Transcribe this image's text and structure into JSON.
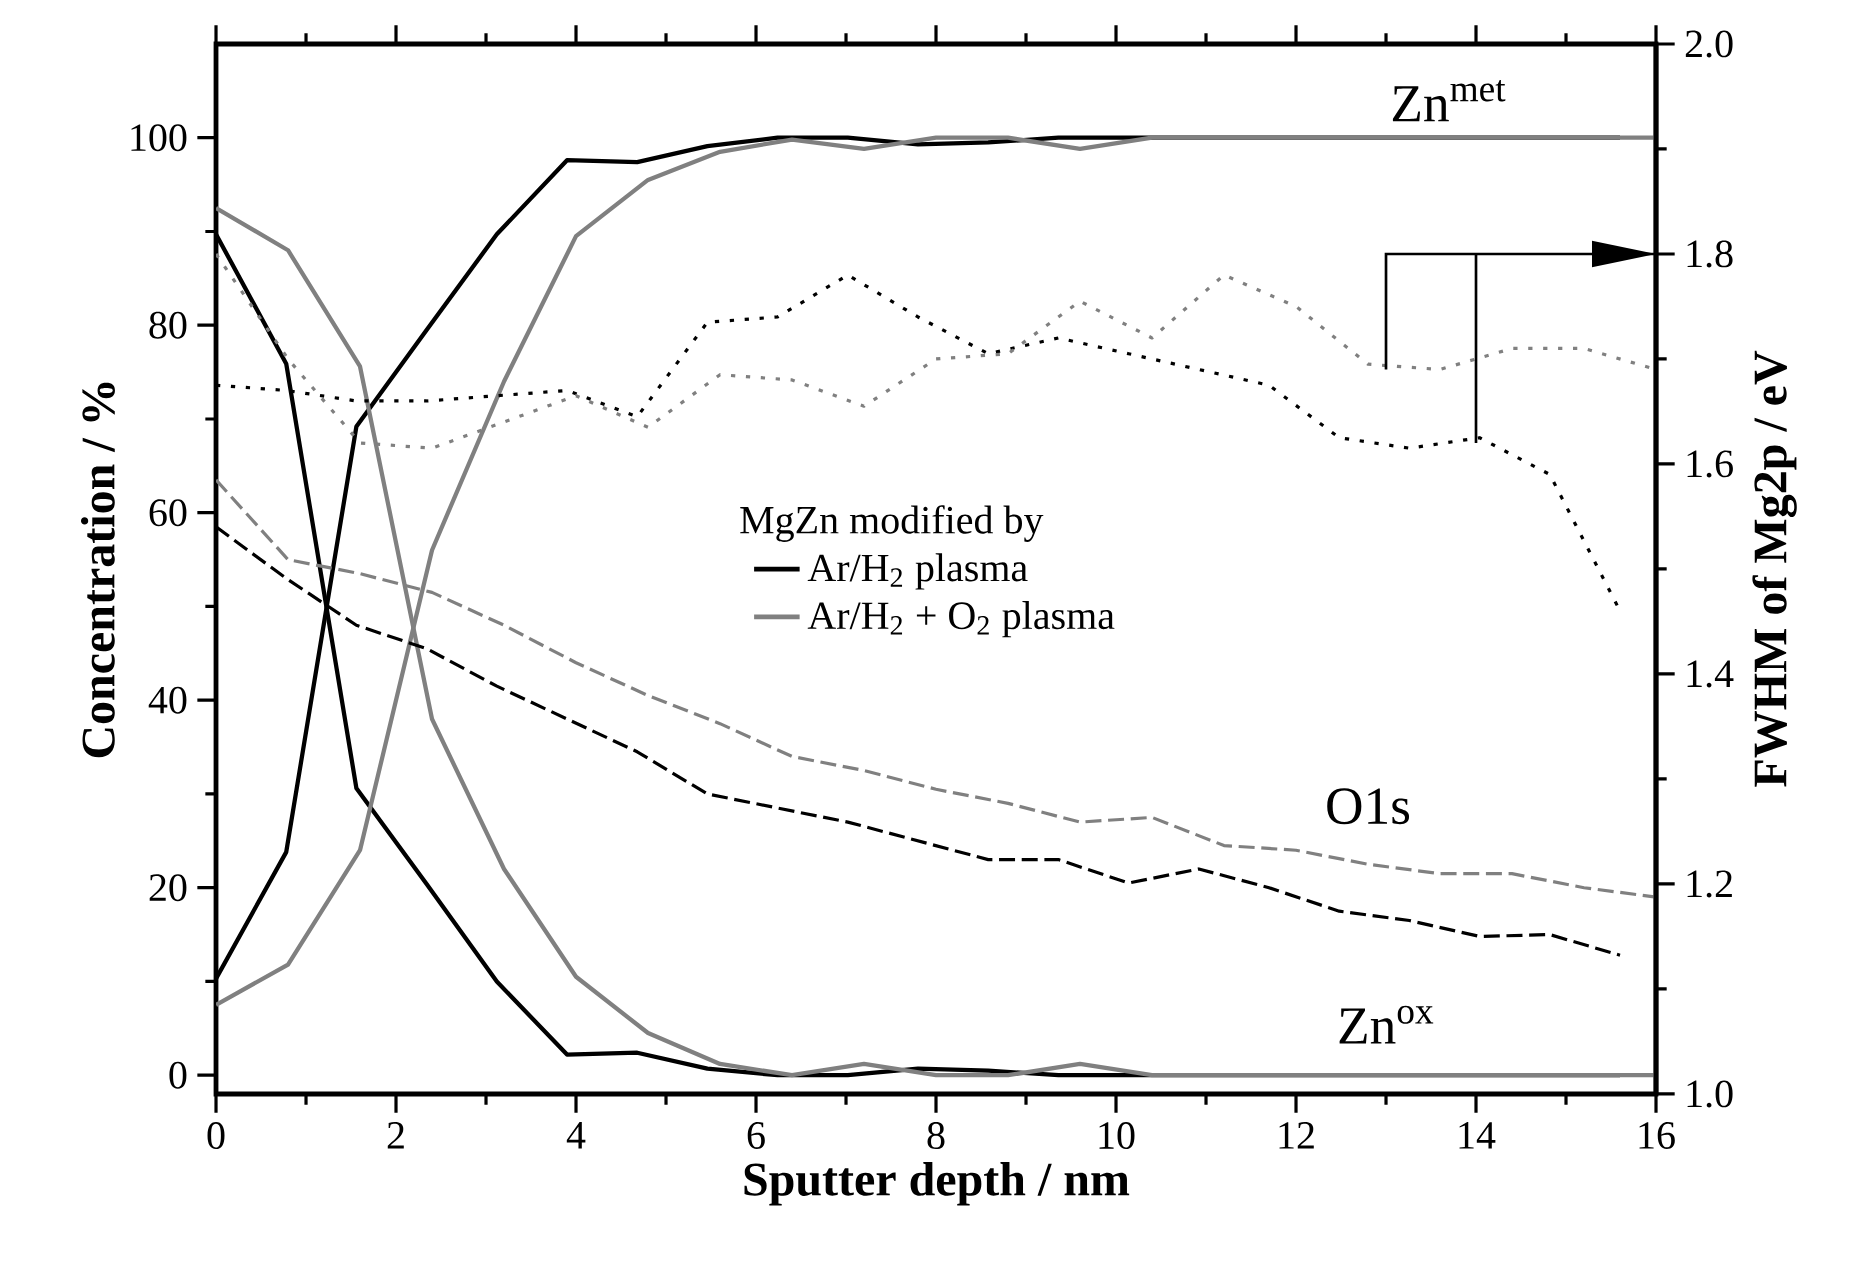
{
  "chart_data": {
    "type": "line",
    "xlabel": "Sputter depth / nm",
    "ylabel": "Concentration / %",
    "y2label": "FWHM of Mg2p / eV",
    "legend_title": "MgZn modified by",
    "legend": "center",
    "xlim": [
      0,
      16
    ],
    "xticks": [
      0,
      2,
      4,
      6,
      8,
      10,
      12,
      14,
      16
    ],
    "ylim": [
      -2,
      110
    ],
    "yticks": [
      0,
      20,
      40,
      60,
      80,
      100
    ],
    "y2lim": [
      1.0,
      2.0
    ],
    "y2ticks": [
      {
        "value": 1.0,
        "label": "1.0"
      },
      {
        "value": 1.2,
        "label": "1.2"
      },
      {
        "value": 1.4,
        "label": "1.4"
      },
      {
        "value": 1.6,
        "label": "1.6"
      },
      {
        "value": 1.8,
        "label": "1.8"
      },
      {
        "value": 2.0,
        "label": "2.0"
      }
    ],
    "annotations": [
      "Zn$^{met}$",
      "O1s",
      "Zn$^{ox}$"
    ],
    "series": [
      {
        "name": "Ar/H$_{2}$ plasma",
        "color": "#000000",
        "line_style": "solid",
        "x": [
          0,
          0.78,
          1.56,
          2.34,
          3.12,
          3.9,
          4.68,
          5.46,
          6.24,
          7.02,
          7.8,
          8.58,
          9.36,
          10.14,
          10.92,
          11.7,
          12.48,
          13.26,
          14.04,
          14.82,
          15.6
        ],
        "values": [
          10.3,
          23.8,
          69.2,
          79.5,
          89.7,
          97.6,
          97.4,
          99.1,
          100,
          100,
          99.3,
          99.5,
          100,
          100,
          100,
          100,
          100,
          100,
          100,
          100,
          100
        ]
      },
      {
        "color": "#000000",
        "line_style": "solid",
        "x": [
          0,
          0.78,
          1.56,
          2.34,
          3.12,
          3.9,
          4.68,
          5.46,
          6.24,
          7.02,
          7.8,
          8.58,
          9.36,
          10.14,
          10.92,
          11.7,
          12.48,
          13.26,
          14.04,
          14.82,
          15.6
        ],
        "values": [
          89.7,
          75.9,
          30.6,
          20.4,
          10.0,
          2.2,
          2.4,
          0.7,
          0,
          0,
          0.7,
          0.5,
          0,
          0,
          0,
          0,
          0,
          0,
          0,
          0,
          0
        ]
      },
      {
        "name": "Ar/H$_{2}$ + O$_{2}$ plasma",
        "color": "#808080",
        "line_style": "solid",
        "x": [
          0,
          0.8,
          1.6,
          2.4,
          3.2,
          4.0,
          4.8,
          5.6,
          6.4,
          7.2,
          8.0,
          8.8,
          9.6,
          10.4,
          11.2,
          12.0,
          12.8,
          13.6,
          14.4,
          15.2,
          16
        ],
        "values": [
          7.5,
          11.8,
          24,
          56,
          74,
          89.5,
          95.5,
          98.5,
          99.8,
          98.8,
          100,
          100,
          98.8,
          100,
          100,
          100,
          100,
          100,
          100,
          100,
          100
        ]
      },
      {
        "color": "#808080",
        "line_style": "solid",
        "x": [
          0,
          0.8,
          1.6,
          2.4,
          3.2,
          4.0,
          4.8,
          5.6,
          6.4,
          7.2,
          8.0,
          8.8,
          9.6,
          10.4,
          11.2,
          12.0,
          12.8,
          13.6,
          14.4,
          15.2,
          16
        ],
        "values": [
          92.5,
          88,
          75.6,
          38,
          22,
          10.5,
          4.5,
          1.2,
          0,
          1.2,
          0,
          0,
          1.2,
          0,
          0,
          0,
          0,
          0,
          0,
          0,
          0
        ]
      },
      {
        "color": "#000000",
        "line_style": "dashed",
        "x": [
          0,
          0.78,
          1.56,
          2.34,
          3.12,
          3.9,
          4.68,
          5.46,
          6.24,
          7.02,
          7.8,
          8.58,
          9.36,
          10.14,
          10.92,
          11.7,
          12.48,
          13.26,
          14.04,
          14.82,
          15.6
        ],
        "values": [
          58.5,
          53,
          48,
          45.5,
          41.5,
          38,
          34.5,
          30,
          28.5,
          27,
          25,
          23,
          23,
          20.5,
          22,
          20,
          17.5,
          16.5,
          14.8,
          15,
          12.8
        ]
      },
      {
        "color": "#808080",
        "line_style": "dashed",
        "x": [
          0,
          0.8,
          1.6,
          2.4,
          3.2,
          4.0,
          4.8,
          5.6,
          6.4,
          7.2,
          8.0,
          8.8,
          9.6,
          10.4,
          11.2,
          12.0,
          12.8,
          13.6,
          14.4,
          15.2,
          16
        ],
        "values": [
          63.5,
          55,
          53.5,
          51.5,
          48,
          44,
          40.5,
          37.5,
          34,
          32.5,
          30.5,
          29,
          27,
          27.5,
          24.5,
          24,
          22.5,
          21.5,
          21.5,
          20,
          19
        ]
      },
      {
        "color": "#000000",
        "line_style": "dotted",
        "axis": "y2",
        "x": [
          0,
          0.78,
          1.56,
          2.34,
          3.12,
          3.9,
          4.68,
          5.46,
          6.24,
          7.02,
          7.8,
          8.58,
          9.36,
          10.14,
          10.92,
          11.7,
          12.48,
          13.26,
          14.04,
          14.82,
          15.6
        ],
        "values": [
          1.675,
          1.67,
          1.66,
          1.66,
          1.665,
          1.67,
          1.645,
          1.735,
          1.74,
          1.78,
          1.74,
          1.705,
          1.72,
          1.705,
          1.69,
          1.675,
          1.625,
          1.615,
          1.625,
          1.59,
          1.46
        ]
      },
      {
        "color": "#808080",
        "line_style": "dotted",
        "axis": "y2",
        "x": [
          0,
          0.8,
          1.6,
          2.4,
          3.2,
          4.0,
          4.8,
          5.6,
          6.4,
          7.2,
          8.0,
          8.8,
          9.6,
          10.4,
          11.2,
          12.0,
          12.8,
          13.6,
          14.4,
          15.2,
          16
        ],
        "values": [
          1.8,
          1.7,
          1.62,
          1.615,
          1.64,
          1.665,
          1.635,
          1.685,
          1.68,
          1.655,
          1.7,
          1.705,
          1.755,
          1.72,
          1.78,
          1.75,
          1.695,
          1.69,
          1.71,
          1.71,
          1.69
        ]
      }
    ]
  }
}
